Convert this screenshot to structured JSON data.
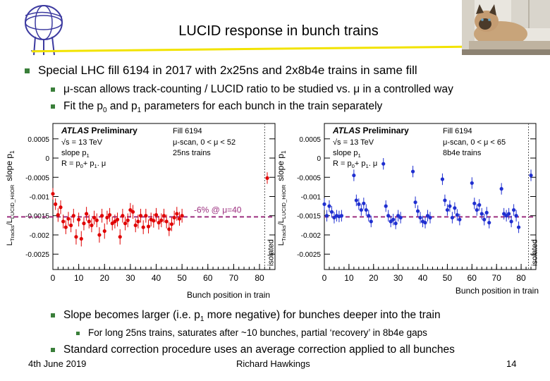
{
  "slide": {
    "title": "LUCID response in bunch trains",
    "bullets": {
      "b1": "Special LHC fill 6194 in 2017 with 2x25ns and 2x8b4e trains in same fill",
      "b1a": "μ-scan allows track-counting / LUCID ratio to be studied vs. μ in a controlled way",
      "b1b_pre": "Fit the p",
      "b1b_sub0": "0",
      "b1b_mid": " and p",
      "b1b_sub1": "1",
      "b1b_post": " parameters for each bunch in the train separately",
      "b2_pre": "Slope becomes larger (i.e. p",
      "b2_sub": "1",
      "b2_post": " more negative) for bunches deeper into the train",
      "b2a": "For long 25ns trains, saturates after ~10 bunches, partial ‘recovery’ in 8b4e gaps",
      "b3": "Standard correction procedure uses an average correction applied to all bunches"
    },
    "footer": {
      "date": "4th June 2019",
      "author": "Richard Hawkings",
      "page": "14"
    }
  },
  "colors": {
    "bullet": "#3a7f3a",
    "title_rule": "#f2e300",
    "red_points": "#e00000",
    "blue_points": "#1f2fd0",
    "dashed_line": "#9c2f7f"
  },
  "chart_data": [
    {
      "type": "scatter",
      "atlas": "ATLAS",
      "preliminary": "Preliminary",
      "fill": "Fill 6194",
      "energy": "√s = 13 TeV",
      "scan": "μ-scan, 0 < μ < 52",
      "trains": "25ns trains",
      "slope_label": "slope p",
      "slope_sub": "1",
      "formula": "R = p",
      "formula_sub0": "0",
      "formula_mid": "+ p",
      "formula_sub1": "1",
      "formula_post": ". μ",
      "ylabel": "slope p",
      "ylabel_sub": "1",
      "ratio_label": "L",
      "ratio_sub1": "Tracks",
      "ratio_mid": "/L",
      "ratio_sub2": "LUCID_HitOR",
      "annotation": "-6% @ μ=40",
      "isolated_label": "isolated",
      "xlabel": "",
      "xlim": [
        0,
        86
      ],
      "ylim": [
        -0.0029,
        0.0009
      ],
      "x_ticks": [
        "0",
        "10",
        "20",
        "30",
        "40",
        "50",
        "60",
        "70",
        "80"
      ],
      "y_ticks": [
        "0.0005",
        "0",
        "-0.0005",
        "-0.001",
        "-0.0015",
        "-0.002",
        "-0.0025"
      ],
      "reference_y": -0.00153,
      "isolated_x": 82,
      "color": "#e00000",
      "x": [
        0,
        1,
        2,
        3,
        4,
        5,
        6,
        7,
        8,
        9,
        10,
        11,
        12,
        13,
        14,
        15,
        16,
        17,
        18,
        19,
        20,
        21,
        22,
        23,
        24,
        25,
        26,
        27,
        28,
        29,
        30,
        31,
        32,
        33,
        34,
        35,
        36,
        37,
        38,
        39,
        40,
        41,
        42,
        43,
        44,
        45,
        46,
        47,
        48,
        49,
        50,
        83
      ],
      "y": [
        -0.00093,
        -0.0012,
        -0.00148,
        -0.00128,
        -0.00165,
        -0.0018,
        -0.00158,
        -0.00175,
        -0.0015,
        -0.00205,
        -0.0016,
        -0.0021,
        -0.0017,
        -0.00145,
        -0.00165,
        -0.00175,
        -0.00155,
        -0.00162,
        -0.002,
        -0.0015,
        -0.0019,
        -0.00155,
        -0.00148,
        -0.0017,
        -0.00165,
        -0.0016,
        -0.00205,
        -0.0015,
        -0.0017,
        -0.00162,
        -0.00135,
        -0.0014,
        -0.00175,
        -0.00165,
        -0.0015,
        -0.0018,
        -0.0015,
        -0.00178,
        -0.0016,
        -0.00163,
        -0.00148,
        -0.00168,
        -0.00162,
        -0.0015,
        -0.00165,
        -0.00185,
        -0.00172,
        -0.00155,
        -0.00145,
        -0.00158,
        -0.0015,
        -0.00052
      ],
      "err": [
        0.00015,
        0.00015,
        0.00018,
        0.00018,
        0.00018,
        0.00018,
        0.00018,
        0.00018,
        0.00018,
        0.0002,
        0.00018,
        0.0002,
        0.00018,
        0.00018,
        0.00018,
        0.00018,
        0.00018,
        0.00018,
        0.0002,
        0.00018,
        0.0002,
        0.00018,
        0.00018,
        0.00018,
        0.00018,
        0.00018,
        0.0002,
        0.00018,
        0.00018,
        0.00018,
        0.00018,
        0.00018,
        0.00018,
        0.00018,
        0.00018,
        0.00018,
        0.00018,
        0.00018,
        0.00018,
        0.00018,
        0.00018,
        0.00018,
        0.00018,
        0.00018,
        0.00018,
        0.00018,
        0.00018,
        0.00018,
        0.00018,
        0.00018,
        0.00018,
        0.00015
      ]
    },
    {
      "type": "scatter",
      "atlas": "ATLAS",
      "preliminary": "Preliminary",
      "fill": "Fill 6194",
      "energy": "√s = 13 TeV",
      "scan": "μ-scan, 0 < μ < 65",
      "trains": "8b4e trains",
      "slope_label": "slope p",
      "slope_sub": "1",
      "formula": "R = p",
      "formula_sub0": "0",
      "formula_mid": "+ p",
      "formula_sub1": "1",
      "formula_post": ". μ",
      "ylabel": "slope p",
      "ylabel_sub": "1",
      "ratio_label": "L",
      "ratio_sub1": "Tracks",
      "ratio_mid": "/L",
      "ratio_sub2": "LUCID_HitOR",
      "xlabel": "Bunch position in train",
      "isolated_label": "isolated",
      "xlim": [
        0,
        86
      ],
      "ylim": [
        -0.0029,
        0.0009
      ],
      "x_ticks": [
        "0",
        "10",
        "20",
        "30",
        "40",
        "50",
        "60",
        "70",
        "80"
      ],
      "y_ticks": [
        "0.0005",
        "0",
        "-0.0005",
        "-0.001",
        "-0.0015",
        "-0.002",
        "-0.0025"
      ],
      "reference_y": -0.00153,
      "isolated_x": 83,
      "color": "#1f2fd0",
      "x": [
        0,
        1,
        2,
        3,
        4,
        5,
        6,
        7,
        12,
        13,
        14,
        15,
        16,
        17,
        18,
        19,
        24,
        25,
        26,
        27,
        28,
        29,
        30,
        31,
        36,
        37,
        38,
        39,
        40,
        41,
        42,
        43,
        48,
        49,
        50,
        51,
        52,
        53,
        54,
        55,
        60,
        61,
        62,
        63,
        64,
        65,
        66,
        67,
        72,
        73,
        74,
        75,
        76,
        77,
        78,
        79,
        84
      ],
      "y": [
        -0.0012,
        -0.0015,
        -0.00125,
        -0.0014,
        -0.00155,
        -0.0015,
        -0.00152,
        -0.0015,
        -0.00045,
        -0.0011,
        -0.0012,
        -0.00135,
        -0.00118,
        -0.00135,
        -0.0015,
        -0.00165,
        -0.00015,
        -0.00125,
        -0.0015,
        -0.00165,
        -0.0016,
        -0.0017,
        -0.0015,
        -0.00155,
        -0.00035,
        -0.00115,
        -0.00138,
        -0.00155,
        -0.00165,
        -0.00168,
        -0.0015,
        -0.00155,
        -0.00055,
        -0.0011,
        -0.00135,
        -0.00125,
        -0.00155,
        -0.0013,
        -0.00148,
        -0.0016,
        -0.00065,
        -0.00118,
        -0.00135,
        -0.00122,
        -0.00145,
        -0.0016,
        -0.00142,
        -0.00168,
        -0.0008,
        -0.00145,
        -0.0015,
        -0.00145,
        -0.00165,
        -0.00135,
        -0.0015,
        -0.0018,
        -0.00045
      ],
      "err": [
        0.00015,
        0.00015,
        0.00015,
        0.00015,
        0.00015,
        0.00015,
        0.00015,
        0.00015,
        0.00015,
        0.00015,
        0.00015,
        0.00015,
        0.00015,
        0.00015,
        0.00015,
        0.00015,
        0.00015,
        0.00015,
        0.00015,
        0.00015,
        0.00015,
        0.00015,
        0.00015,
        0.00015,
        0.00015,
        0.00015,
        0.00015,
        0.00015,
        0.00015,
        0.00015,
        0.00015,
        0.00015,
        0.00015,
        0.00015,
        0.00015,
        0.00015,
        0.00015,
        0.00015,
        0.00015,
        0.00015,
        0.00015,
        0.00015,
        0.00015,
        0.00015,
        0.00015,
        0.00015,
        0.00015,
        0.00015,
        0.00015,
        0.00015,
        0.00015,
        0.00015,
        0.00015,
        0.00015,
        0.00015,
        0.00015,
        0.00015
      ]
    }
  ],
  "chart_xlabel_left": "Bunch position in train"
}
